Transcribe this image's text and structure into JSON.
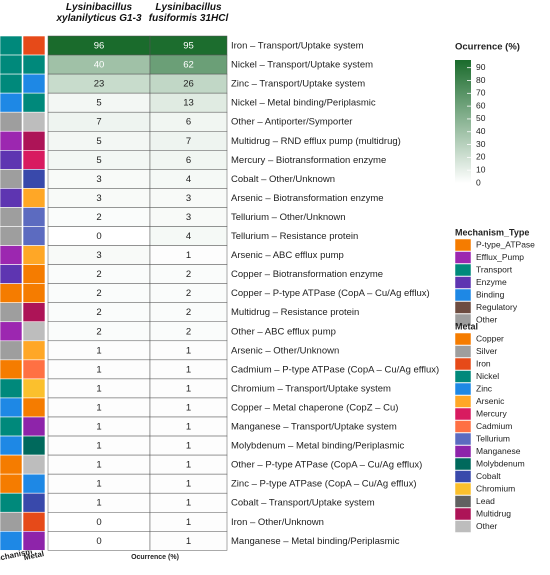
{
  "chart_data": {
    "type": "heatmap",
    "x_label": "Ocurrence (%)",
    "rows": [
      "Iron – Transport/Uptake system",
      "Nickel – Transport/Uptake system",
      "Zinc – Transport/Uptake system",
      "Nickel – Metal binding/Periplasmic",
      "Other – Antiporter/Symporter",
      "Multidrug – RND efflux pump (multidrug)",
      "Mercury – Biotransformation enzyme",
      "Cobalt – Other/Unknown",
      "Arsenic – Biotransformation enzyme",
      "Tellurium – Other/Unknown",
      "Tellurium – Resistance protein",
      "Arsenic – ABC efflux pump",
      "Copper – Biotransformation enzyme",
      "Copper – P-type ATPase (CopA – Cu/Ag efflux)",
      "Multidrug – Resistance protein",
      "Other – ABC efflux pump",
      "Arsenic – Other/Unknown",
      "Cadmium – P-type ATPase (CopA – Cu/Ag efflux)",
      "Chromium – Transport/Uptake system",
      "Copper – Metal chaperone (CopZ – Cu)",
      "Manganese – Transport/Uptake system",
      "Molybdenum – Metal binding/Periplasmic",
      "Other – P-type ATPase (CopA – Cu/Ag efflux)",
      "Zinc – P-type ATPase (CopA – Cu/Ag efflux)",
      "Cobalt – Transport/Uptake system",
      "Iron – Other/Unknown",
      "Manganese – Metal binding/Periplasmic"
    ],
    "series": [
      {
        "name": "Lysinibacillus xylanilyticus G1-3",
        "values": [
          96,
          40,
          23,
          5,
          7,
          5,
          5,
          3,
          3,
          2,
          0,
          3,
          2,
          2,
          2,
          2,
          1,
          1,
          1,
          1,
          1,
          1,
          1,
          1,
          1,
          0,
          0
        ]
      },
      {
        "name": "Lysinibacillus fusiformis 31HCl",
        "values": [
          95,
          62,
          26,
          13,
          6,
          7,
          6,
          4,
          3,
          3,
          4,
          1,
          2,
          2,
          2,
          2,
          1,
          1,
          1,
          1,
          1,
          1,
          1,
          1,
          1,
          1,
          1
        ]
      }
    ],
    "colorbar": {
      "title": "Ocurrence (%)",
      "lim": [
        0,
        96
      ],
      "ticks": [
        0,
        10,
        20,
        30,
        40,
        50,
        60,
        70,
        80,
        90
      ],
      "colors": [
        "#ffffff",
        "#1a6b2c"
      ]
    },
    "annotations": [
      {
        "label": "Mechanism",
        "legend_title": "Mechanism_Type",
        "items": [
          {
            "name": "P-type_ATPase",
            "color": "#f57c00"
          },
          {
            "name": "Efflux_Pump",
            "color": "#9c27b0"
          },
          {
            "name": "Transport",
            "color": "#00897b"
          },
          {
            "name": "Enzyme",
            "color": "#5e35b1"
          },
          {
            "name": "Binding",
            "color": "#1e88e5"
          },
          {
            "name": "Regulatory",
            "color": "#6d4c41"
          },
          {
            "name": "Other",
            "color": "#9e9e9e"
          }
        ],
        "values": [
          "Transport",
          "Transport",
          "Transport",
          "Binding",
          "Other",
          "Efflux_Pump",
          "Enzyme",
          "Other",
          "Enzyme",
          "Other",
          "Other",
          "Efflux_Pump",
          "Enzyme",
          "P-type_ATPase",
          "Other",
          "Efflux_Pump",
          "Other",
          "P-type_ATPase",
          "Transport",
          "Binding",
          "Transport",
          "Binding",
          "P-type_ATPase",
          "P-type_ATPase",
          "Transport",
          "Other",
          "Binding"
        ]
      },
      {
        "label": "Metal",
        "legend_title": "Metal",
        "items": [
          {
            "name": "Copper",
            "color": "#f57c00"
          },
          {
            "name": "Silver",
            "color": "#9e9e9e"
          },
          {
            "name": "Iron",
            "color": "#e64a19"
          },
          {
            "name": "Nickel",
            "color": "#00897b"
          },
          {
            "name": "Zinc",
            "color": "#1e88e5"
          },
          {
            "name": "Arsenic",
            "color": "#ffa726"
          },
          {
            "name": "Mercury",
            "color": "#d81b60"
          },
          {
            "name": "Cadmium",
            "color": "#ff7043"
          },
          {
            "name": "Tellurium",
            "color": "#5c6bc0"
          },
          {
            "name": "Manganese",
            "color": "#8e24aa"
          },
          {
            "name": "Molybdenum",
            "color": "#00695c"
          },
          {
            "name": "Cobalt",
            "color": "#3949ab"
          },
          {
            "name": "Chromium",
            "color": "#fbc02d"
          },
          {
            "name": "Lead",
            "color": "#616161"
          },
          {
            "name": "Multidrug",
            "color": "#ad1457"
          },
          {
            "name": "Other",
            "color": "#bdbdbd"
          }
        ],
        "values": [
          "Iron",
          "Nickel",
          "Zinc",
          "Nickel",
          "Other",
          "Multidrug",
          "Mercury",
          "Cobalt",
          "Arsenic",
          "Tellurium",
          "Tellurium",
          "Arsenic",
          "Copper",
          "Copper",
          "Multidrug",
          "Other",
          "Arsenic",
          "Cadmium",
          "Chromium",
          "Copper",
          "Manganese",
          "Molybdenum",
          "Other",
          "Zinc",
          "Cobalt",
          "Iron",
          "Manganese"
        ]
      }
    ]
  }
}
